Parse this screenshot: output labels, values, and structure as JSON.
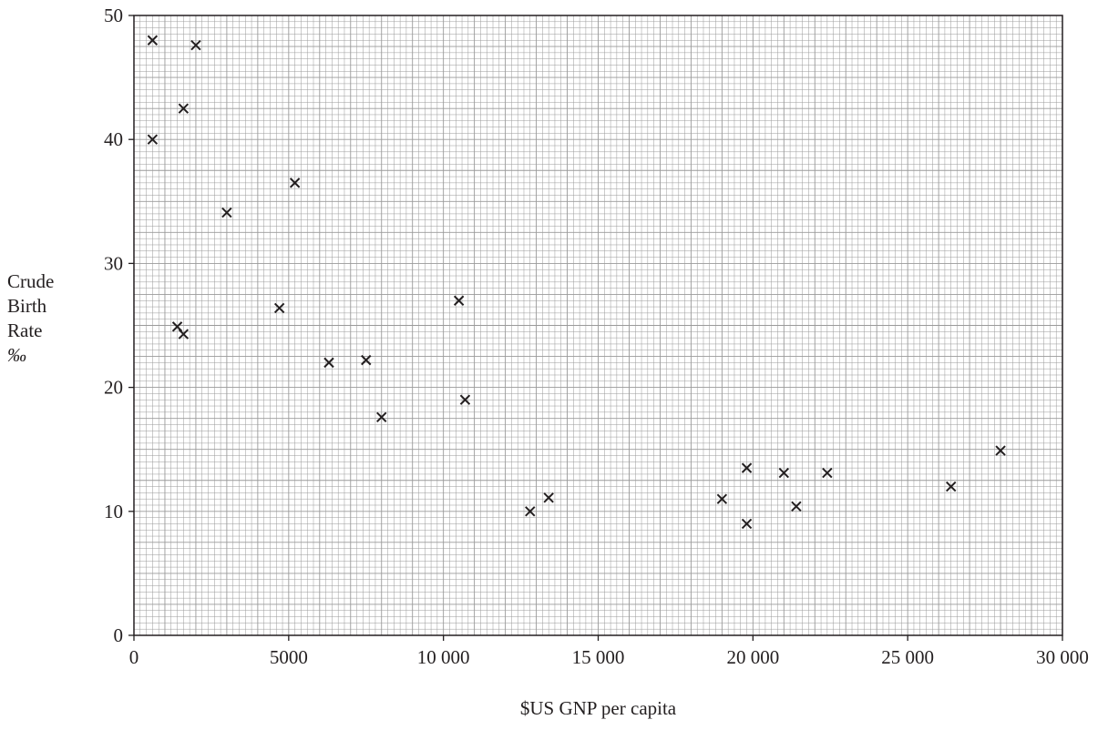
{
  "chart_data": {
    "type": "scatter",
    "title": "",
    "xlabel": "$US GNP per capita",
    "ylabel_lines": [
      "Crude",
      "Birth",
      "Rate",
      "‰"
    ],
    "xlim": [
      0,
      30000
    ],
    "ylim": [
      0,
      50
    ],
    "xticks": [
      0,
      5000,
      10000,
      15000,
      20000,
      25000,
      30000
    ],
    "xtick_labels": [
      "0",
      "5000",
      "10 000",
      "15 000",
      "20 000",
      "25 000",
      "30 000"
    ],
    "yticks": [
      0,
      10,
      20,
      30,
      40,
      50
    ],
    "ytick_labels": [
      "0",
      "10",
      "20",
      "30",
      "40",
      "50"
    ],
    "grid": true,
    "marker": "x",
    "colors": {
      "ink": "#231f20",
      "grid": "#9a9a9a",
      "background": "#ffffff"
    },
    "points": [
      {
        "x": 600,
        "y": 48
      },
      {
        "x": 2000,
        "y": 47.6
      },
      {
        "x": 1600,
        "y": 42.5
      },
      {
        "x": 600,
        "y": 40
      },
      {
        "x": 5200,
        "y": 36.5
      },
      {
        "x": 3000,
        "y": 34.1
      },
      {
        "x": 10500,
        "y": 27
      },
      {
        "x": 4700,
        "y": 26.4
      },
      {
        "x": 1400,
        "y": 24.9
      },
      {
        "x": 1600,
        "y": 24.3
      },
      {
        "x": 7500,
        "y": 22.2
      },
      {
        "x": 6300,
        "y": 22
      },
      {
        "x": 10700,
        "y": 19
      },
      {
        "x": 8000,
        "y": 17.6
      },
      {
        "x": 28000,
        "y": 14.9
      },
      {
        "x": 19800,
        "y": 13.5
      },
      {
        "x": 21000,
        "y": 13.1
      },
      {
        "x": 22400,
        "y": 13.1
      },
      {
        "x": 26400,
        "y": 12
      },
      {
        "x": 13400,
        "y": 11.1
      },
      {
        "x": 19000,
        "y": 11
      },
      {
        "x": 21400,
        "y": 10.4
      },
      {
        "x": 12800,
        "y": 10
      },
      {
        "x": 19800,
        "y": 9
      }
    ]
  }
}
